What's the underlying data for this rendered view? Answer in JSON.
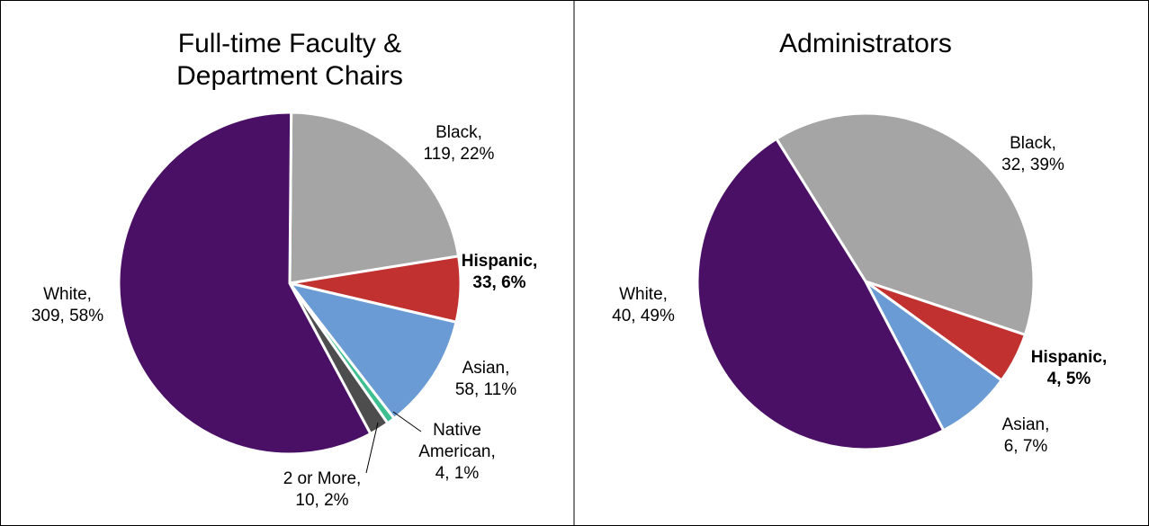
{
  "chart_data": [
    {
      "type": "pie",
      "title": [
        "Full-time Faculty &",
        "Department Chairs"
      ],
      "values": [
        119,
        33,
        58,
        4,
        10,
        309
      ],
      "value_labels": [
        [
          "Black,",
          "119, 22%"
        ],
        [
          "Hispanic,",
          "33, 6%"
        ],
        [
          "Asian,",
          "58, 11%"
        ],
        [
          "Native",
          "American,",
          "4, 1%"
        ],
        [
          "2 or More,",
          "10, 2%"
        ],
        [
          "White,",
          "309, 58%"
        ]
      ],
      "colors": [
        "#a5a5a5",
        "#c0312f",
        "#6a9bd4",
        "#3dbf8f",
        "#4d4d4d",
        "#4a1066"
      ]
    },
    {
      "type": "pie",
      "title": [
        "Administrators"
      ],
      "values": [
        32,
        4,
        6,
        40
      ],
      "value_labels": [
        [
          "Black,",
          "32, 39%"
        ],
        [
          "Hispanic,",
          "4, 5%"
        ],
        [
          "Asian,",
          "6, 7%"
        ],
        [
          "White,",
          "40, 49%"
        ]
      ],
      "colors": [
        "#a5a5a5",
        "#c0312f",
        "#6a9bd4",
        "#4a1066"
      ]
    }
  ]
}
